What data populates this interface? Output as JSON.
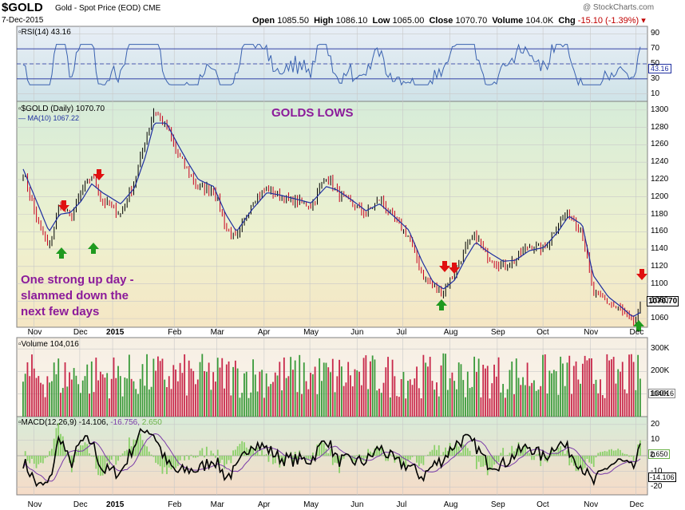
{
  "header": {
    "symbol": "$GOLD",
    "name": "Gold - Spot Price (EOD) CME",
    "date": "7-Dec-2015",
    "open_label": "Open",
    "open": "1085.50",
    "high_label": "High",
    "high": "1086.10",
    "low_label": "Low",
    "low": "1065.00",
    "close_label": "Close",
    "close": "1070.70",
    "volume_label": "Volume",
    "volume": "104.0K",
    "chg_label": "Chg",
    "chg": "-15.10 (-1.39%)",
    "brand": "@ StockCharts.com"
  },
  "rsi_panel": {
    "label": "RSI(14) 43.16",
    "value_tag": "43.16",
    "ticks": [
      "90",
      "70",
      "50",
      "30",
      "10"
    ]
  },
  "price_panel": {
    "label": "$GOLD (Daily) 1070.70",
    "ma_label": "MA(10) 1067.22",
    "price_tag": "1070.70",
    "ticks": [
      "1300",
      "1280",
      "1260",
      "1240",
      "1220",
      "1200",
      "1180",
      "1160",
      "1140",
      "1120",
      "1100",
      "1080",
      "1060"
    ]
  },
  "volume_panel": {
    "label": "Volume 104,016",
    "value_tag": "104016",
    "ticks": [
      "300K",
      "200K",
      "100K"
    ]
  },
  "macd_panel": {
    "label_prefix": "MACD(12,26,9) -14.106,",
    "signal_value": "-16.756,",
    "hist_value": "2.650",
    "value_tags": [
      "2.650",
      "-14.106"
    ],
    "ticks": [
      "20",
      "10",
      "0",
      "-10",
      "-20"
    ]
  },
  "x_axis": [
    "Nov",
    "Dec",
    "2015",
    "Feb",
    "Mar",
    "Apr",
    "May",
    "Jun",
    "Jul",
    "Aug",
    "Sep",
    "Oct",
    "Nov",
    "Dec"
  ],
  "annotations": {
    "title": "GOLDS LOWS",
    "note_line1": "One strong up day -",
    "note_line2": "slammed down the",
    "note_line3": "next few days"
  },
  "colors": {
    "up": "#000000",
    "down": "#c8001e",
    "ma": "#1f2fa0",
    "vol_up": "#3a9a3a",
    "vol_down": "#c8284a",
    "arrow_up": "#1f9a1f",
    "arrow_down": "#e01010",
    "annotation": "#8b1a9a",
    "macd": "#000000",
    "signal": "#7a3aa8",
    "hist": "#8bd06a"
  },
  "chart_data": {
    "type": "line",
    "title": "$GOLD (Daily)",
    "x": [
      "2014-10-28",
      "2014-11-07",
      "2014-11-14",
      "2014-11-21",
      "2014-11-28",
      "2014-12-05",
      "2014-12-12",
      "2014-12-19",
      "2014-12-31",
      "2015-01-09",
      "2015-01-16",
      "2015-01-22",
      "2015-01-30",
      "2015-02-06",
      "2015-02-13",
      "2015-02-20",
      "2015-03-02",
      "2015-03-10",
      "2015-03-17",
      "2015-03-27",
      "2015-04-06",
      "2015-04-15",
      "2015-04-24",
      "2015-05-05",
      "2015-05-15",
      "2015-05-22",
      "2015-06-01",
      "2015-06-10",
      "2015-06-19",
      "2015-06-30",
      "2015-07-08",
      "2015-07-17",
      "2015-07-24",
      "2015-07-31",
      "2015-08-07",
      "2015-08-14",
      "2015-08-21",
      "2015-08-28",
      "2015-09-08",
      "2015-09-16",
      "2015-09-25",
      "2015-10-05",
      "2015-10-14",
      "2015-10-21",
      "2015-10-30",
      "2015-11-06",
      "2015-11-16",
      "2015-11-24",
      "2015-12-02",
      "2015-12-07"
    ],
    "series": [
      {
        "name": "$GOLD",
        "values": [
          1228,
          1168,
          1140,
          1195,
          1175,
          1205,
          1225,
          1195,
          1180,
          1218,
          1265,
          1300,
          1280,
          1250,
          1230,
          1210,
          1210,
          1165,
          1150,
          1195,
          1210,
          1200,
          1195,
          1190,
          1225,
          1205,
          1192,
          1180,
          1198,
          1170,
          1155,
          1110,
          1095,
          1092,
          1112,
          1140,
          1155,
          1133,
          1120,
          1128,
          1145,
          1140,
          1170,
          1182,
          1160,
          1090,
          1078,
          1070,
          1052,
          1071
        ]
      },
      {
        "name": "MA(10)",
        "values": [
          1232,
          1190,
          1160,
          1180,
          1182,
          1195,
          1215,
          1205,
          1192,
          1210,
          1245,
          1285,
          1285,
          1262,
          1240,
          1220,
          1212,
          1180,
          1160,
          1185,
          1205,
          1202,
          1198,
          1193,
          1212,
          1208,
          1196,
          1184,
          1192,
          1175,
          1162,
          1125,
          1102,
          1094,
          1104,
          1128,
          1148,
          1138,
          1126,
          1127,
          1138,
          1142,
          1160,
          1178,
          1168,
          1110,
          1085,
          1074,
          1062,
          1067
        ]
      }
    ],
    "ylim": [
      1050,
      1310
    ],
    "rsi": {
      "name": "RSI(14)",
      "ylim": [
        0,
        100
      ],
      "last": 43.16
    },
    "volume": {
      "name": "Volume",
      "last": 104016,
      "ylim": [
        0,
        350000
      ]
    },
    "macd": {
      "name": "MACD(12,26,9)",
      "macd_last": -14.106,
      "signal_last": -16.756,
      "hist_last": 2.65,
      "ylim": [
        -25,
        25
      ]
    },
    "grid": true
  }
}
